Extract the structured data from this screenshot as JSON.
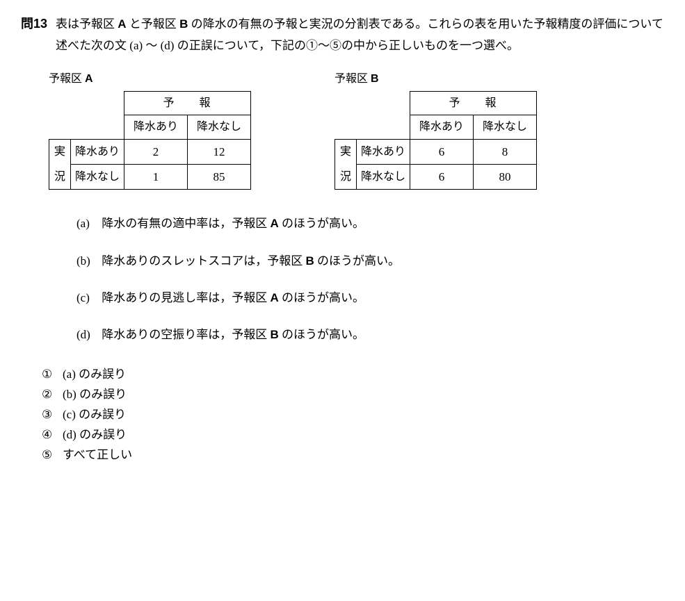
{
  "problem": {
    "number": "問13",
    "text_line1_pre": "表は予報区 ",
    "text_line1_A": "A",
    "text_line1_mid": " と予報区 ",
    "text_line1_B": "B",
    "text_line1_post": " の降水の有無の予報と実況の分割表である。これらの表を用いた予報精度の評価について述べた次の文 (a) ～ (d) の正誤について，下記の①～⑤の中から正しいものを一つ選べ。"
  },
  "tableA": {
    "title_pre": "予報区 ",
    "title_region": "A",
    "header_forecast": "予　報",
    "col_rain": "降水あり",
    "col_norain": "降水なし",
    "side_actual_1": "実",
    "side_actual_2": "況",
    "row_rain": "降水あり",
    "row_norain": "降水なし",
    "cells": {
      "aa": "2",
      "ab": "12",
      "ba": "1",
      "bb": "85"
    }
  },
  "tableB": {
    "title_pre": "予報区 ",
    "title_region": "B",
    "header_forecast": "予　報",
    "col_rain": "降水あり",
    "col_norain": "降水なし",
    "side_actual_1": "実",
    "side_actual_2": "況",
    "row_rain": "降水あり",
    "row_norain": "降水なし",
    "cells": {
      "aa": "6",
      "ab": "8",
      "ba": "6",
      "bb": "80"
    }
  },
  "statements": {
    "a": {
      "label": "(a)",
      "pre": "降水の有無の適中率は，予報区 ",
      "region": "A",
      "post": " のほうが高い。"
    },
    "b": {
      "label": "(b)",
      "pre": "降水ありのスレットスコアは，予報区 ",
      "region": "B",
      "post": " のほうが高い。"
    },
    "c": {
      "label": "(c)",
      "pre": "降水ありの見逃し率は，予報区 ",
      "region": "A",
      "post": " のほうが高い。"
    },
    "d": {
      "label": "(d)",
      "pre": "降水ありの空振り率は，予報区 ",
      "region": "B",
      "post": " のほうが高い。"
    }
  },
  "choices": {
    "c1": {
      "label": "①",
      "text": "(a) のみ誤り"
    },
    "c2": {
      "label": "②",
      "text": "(b) のみ誤り"
    },
    "c3": {
      "label": "③",
      "text": "(c) のみ誤り"
    },
    "c4": {
      "label": "④",
      "text": "(d) のみ誤り"
    },
    "c5": {
      "label": "⑤",
      "text": "すべて正しい"
    }
  }
}
